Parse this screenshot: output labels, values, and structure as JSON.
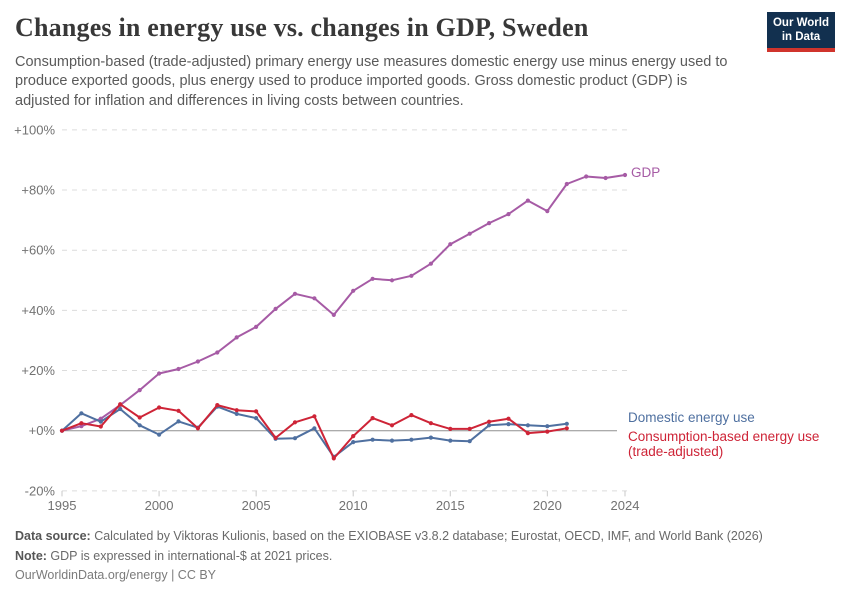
{
  "header": {
    "title": "Changes in energy use vs. changes in GDP, Sweden",
    "subtitle": "Consumption-based (trade-adjusted) primary energy use measures domestic energy use minus energy used to produce exported goods, plus energy used to produce imported goods. Gross domestic product (GDP) is adjusted for inflation and differences in living costs between countries.",
    "logo": {
      "line1": "Our World",
      "line2": "in Data",
      "bg_color": "#12304f",
      "stripe_color": "#d0342c"
    }
  },
  "chart_data": {
    "type": "line",
    "title": "Changes in energy use vs. changes in GDP, Sweden",
    "xlabel": "",
    "ylabel": "",
    "xlim": [
      1995,
      2024
    ],
    "ylim": [
      -20,
      100
    ],
    "grid": "horizontal-dashed",
    "legend_position": "right-end-labels",
    "x_ticks": [
      {
        "label": "1995",
        "value": 1995
      },
      {
        "label": "2000",
        "value": 2000
      },
      {
        "label": "2005",
        "value": 2005
      },
      {
        "label": "2010",
        "value": 2010
      },
      {
        "label": "2015",
        "value": 2015
      },
      {
        "label": "2020",
        "value": 2020
      },
      {
        "label": "2024",
        "value": 2024
      }
    ],
    "y_ticks": [
      {
        "label": "+100%",
        "value": 100
      },
      {
        "label": "+80%",
        "value": 80
      },
      {
        "label": "+60%",
        "value": 60
      },
      {
        "label": "+40%",
        "value": 40
      },
      {
        "label": "+20%",
        "value": 20
      },
      {
        "label": "+0%",
        "value": 0
      },
      {
        "label": "-20%",
        "value": -20
      }
    ],
    "series": [
      {
        "id": "gdp",
        "name": "GDP",
        "label_lines": [
          "GDP"
        ],
        "color": "#a65ba5",
        "x": [
          1995,
          1996,
          1997,
          1998,
          1999,
          2000,
          2001,
          2002,
          2003,
          2004,
          2005,
          2006,
          2007,
          2008,
          2009,
          2010,
          2011,
          2012,
          2013,
          2014,
          2015,
          2016,
          2017,
          2018,
          2019,
          2020,
          2021,
          2022,
          2023,
          2024
        ],
        "values": [
          0,
          1.5,
          4,
          8.5,
          13.5,
          19,
          20.5,
          23,
          26,
          31,
          34.5,
          40.5,
          45.5,
          44,
          38.5,
          46.5,
          50.5,
          50,
          51.5,
          55.5,
          62,
          65.5,
          69,
          72,
          76.5,
          73,
          82,
          84.5,
          84,
          85
        ]
      },
      {
        "id": "domestic",
        "name": "Domestic energy use",
        "label_lines": [
          "Domestic energy use"
        ],
        "color": "#4f70a0",
        "x": [
          1995,
          1996,
          1997,
          1998,
          1999,
          2000,
          2001,
          2002,
          2003,
          2004,
          2005,
          2006,
          2007,
          2008,
          2009,
          2010,
          2011,
          2012,
          2013,
          2014,
          2015,
          2016,
          2017,
          2018,
          2019,
          2020,
          2021
        ],
        "values": [
          0,
          5.8,
          3,
          7.2,
          1.8,
          -1.3,
          3.1,
          1,
          8,
          5.6,
          4.2,
          -2.7,
          -2.5,
          0.8,
          -8.7,
          -3.8,
          -3,
          -3.3,
          -3,
          -2.3,
          -3.3,
          -3.5,
          1.8,
          2.2,
          1.8,
          1.5,
          2.3
        ]
      },
      {
        "id": "consumption",
        "name": "Consumption-based energy use (trade-adjusted)",
        "label_lines": [
          "Consumption-based energy use",
          "(trade-adjusted)"
        ],
        "color": "#ce2437",
        "x": [
          1995,
          1996,
          1997,
          1998,
          1999,
          2000,
          2001,
          2002,
          2003,
          2004,
          2005,
          2006,
          2007,
          2008,
          2009,
          2010,
          2011,
          2012,
          2013,
          2014,
          2015,
          2016,
          2017,
          2018,
          2019,
          2020,
          2021
        ],
        "values": [
          0,
          2.5,
          1.4,
          8.8,
          4.4,
          7.7,
          6.6,
          0.8,
          8.5,
          6.8,
          6.4,
          -2.4,
          2.8,
          4.8,
          -9.2,
          -1.8,
          4.2,
          1.8,
          5.2,
          2.5,
          0.6,
          0.6,
          3,
          4,
          -0.8,
          -0.3,
          0.8
        ]
      }
    ],
    "colors": {
      "grid": "#dcdcdc",
      "zero_line": "#8f8f8f",
      "axis_text": "#727272",
      "tick_mark": "#c9c9c9"
    }
  },
  "footer": {
    "source_label": "Data source:",
    "source_text": " Calculated by Viktoras Kulionis, based on the EXIOBASE v3.8.2 database; Eurostat, OECD, IMF, and World Bank (2026)",
    "note_label": "Note:",
    "note_text": " GDP is expressed in international-$ at 2021 prices.",
    "citation": "OurWorldinData.org/energy | CC BY"
  }
}
